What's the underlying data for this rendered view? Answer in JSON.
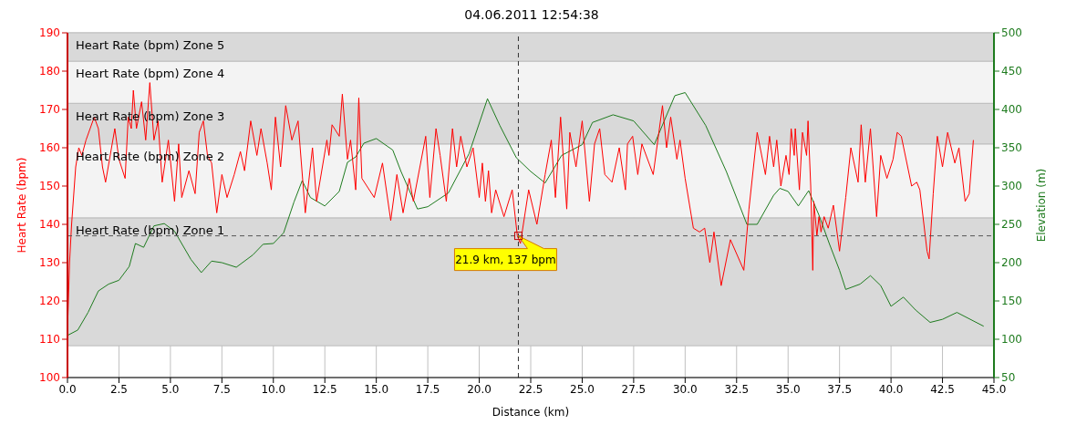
{
  "chart_data": {
    "type": "line",
    "title": "04.06.2011 12:54:38",
    "xlabel": "Distance (km)",
    "ylabel": "Heart Rate (bpm)",
    "y2label": "Elevation (m)",
    "xlim": [
      0,
      45
    ],
    "xticks": [
      {
        "value": 0,
        "label": "0.0"
      },
      2.5,
      {
        "value": 5,
        "label": "5.0"
      },
      7.5,
      {
        "value": 10,
        "label": "10.0"
      },
      12.5,
      {
        "value": 15,
        "label": "15.0"
      },
      17.5,
      {
        "value": 20,
        "label": "20.0"
      },
      22.5,
      {
        "value": 25,
        "label": "25.0"
      },
      27.5,
      {
        "value": 30,
        "label": "30.0"
      },
      32.5,
      {
        "value": 35,
        "label": "35.0"
      },
      37.5,
      {
        "value": 40,
        "label": "40.0"
      },
      42.5,
      {
        "value": 45,
        "label": "45.0"
      }
    ],
    "ylim": [
      100,
      190
    ],
    "yticks": [
      100,
      110,
      120,
      130,
      140,
      150,
      160,
      170,
      180,
      190
    ],
    "y2lim": [
      50,
      500
    ],
    "y2ticks": [
      50,
      100,
      150,
      200,
      250,
      300,
      350,
      400,
      450,
      500
    ],
    "grid": true,
    "series": [
      {
        "color": "#1e7b1e",
        "axis": "y2",
        "x": [
          0,
          0.5,
          1,
          1.5,
          2,
          2.5,
          3,
          3.3,
          3.7,
          4.2,
          4.7,
          5.2,
          6,
          6.5,
          7,
          7.5,
          8.2,
          9,
          9.5,
          10,
          10.5,
          11,
          11.4,
          11.8,
          12.5,
          13.2,
          13.6,
          14,
          14.4,
          15,
          15.8,
          16.2,
          17,
          17.5,
          18.5,
          19.5,
          20.4,
          21,
          21.8,
          22.5,
          23.2,
          24,
          25,
          25.5,
          26.5,
          27.5,
          28.5,
          29.5,
          30,
          31,
          32,
          33,
          33.5,
          34.3,
          34.6,
          35,
          35.5,
          36,
          36.5,
          37,
          37.5,
          37.8,
          38.5,
          39,
          39.5,
          40,
          40.6,
          41.2,
          41.9,
          42.5,
          43.2,
          44.5
        ],
        "values": [
          105,
          112,
          135,
          163,
          172,
          177,
          195,
          225,
          220,
          248,
          251,
          241,
          204,
          187,
          202,
          200,
          194,
          210,
          224,
          225,
          239,
          279,
          307,
          285,
          274,
          293,
          331,
          338,
          356,
          362,
          347,
          319,
          270,
          273,
          291,
          342,
          414,
          379,
          337,
          319,
          304,
          340,
          354,
          383,
          393,
          385,
          354,
          418,
          422,
          379,
          319,
          250,
          250,
          288,
          297,
          293,
          274,
          294,
          262,
          225,
          190,
          165,
          172,
          183,
          170,
          143,
          155,
          138,
          122,
          126,
          135,
          117
        ]
      },
      {
        "color": "#ff0000",
        "axis": "y",
        "x": [
          0,
          0.1,
          0.2,
          0.4,
          0.55,
          0.7,
          0.9,
          1.3,
          1.5,
          1.7,
          1.85,
          2.3,
          2.5,
          2.8,
          2.95,
          3.1,
          3.2,
          3.35,
          3.6,
          3.8,
          4,
          4.2,
          4.4,
          4.6,
          4.9,
          5.2,
          5.4,
          5.55,
          5.9,
          6.2,
          6.4,
          6.6,
          6.8,
          7,
          7.25,
          7.5,
          7.75,
          8.1,
          8.4,
          8.6,
          8.9,
          9.2,
          9.4,
          9.7,
          9.9,
          10.1,
          10.35,
          10.6,
          10.9,
          11.2,
          11.55,
          11.9,
          12.1,
          12.6,
          12.7,
          12.85,
          13.2,
          13.35,
          13.6,
          13.75,
          14,
          14.15,
          14.3,
          14.9,
          15.3,
          15.7,
          16,
          16.3,
          16.6,
          16.8,
          17.4,
          17.6,
          17.9,
          18.1,
          18.4,
          18.7,
          18.9,
          19.1,
          19.4,
          19.7,
          20,
          20.15,
          20.3,
          20.45,
          20.6,
          20.8,
          21.2,
          21.6,
          21.85,
          22,
          22.4,
          22.8,
          23.2,
          23.5,
          23.7,
          23.95,
          24.25,
          24.4,
          24.7,
          25,
          25.35,
          25.6,
          25.85,
          26.1,
          26.45,
          26.8,
          27.1,
          27.2,
          27.45,
          27.7,
          27.9,
          28.45,
          28.9,
          29.1,
          29.3,
          29.6,
          29.75,
          30,
          30.4,
          30.7,
          30.95,
          31.2,
          31.4,
          31.75,
          32.2,
          32.85,
          33.1,
          33.5,
          33.9,
          34.1,
          34.3,
          34.45,
          34.65,
          34.9,
          35.05,
          35.15,
          35.3,
          35.35,
          35.55,
          35.7,
          35.9,
          35.97,
          36.1,
          36.2,
          36.25,
          36.4,
          36.5,
          36.6,
          36.75,
          36.95,
          37.2,
          37.5,
          37.8,
          38.05,
          38.4,
          38.55,
          38.75,
          39,
          39.3,
          39.5,
          39.8,
          40.1,
          40.3,
          40.5,
          41,
          41.25,
          41.4,
          41.75,
          41.85,
          42.05,
          42.25,
          42.5,
          42.75,
          43.1,
          43.3,
          43.6,
          43.8,
          44
        ],
        "values": [
          112,
          130,
          140,
          155,
          160,
          158,
          162,
          168,
          165,
          155,
          151,
          165,
          157,
          152,
          168,
          165,
          175,
          165,
          172,
          162,
          177,
          162,
          167,
          151,
          162,
          146,
          161,
          147,
          154,
          148,
          164,
          167,
          158,
          156,
          143,
          153,
          147,
          153,
          159,
          154,
          167,
          158,
          165,
          156,
          149,
          168,
          155,
          171,
          162,
          167,
          143,
          160,
          146,
          162,
          158,
          166,
          163,
          174,
          157,
          162,
          149,
          173,
          152,
          147,
          156,
          141,
          153,
          143,
          152,
          146,
          163,
          147,
          165,
          158,
          146,
          165,
          155,
          163,
          155,
          160,
          147,
          156,
          146,
          154,
          143,
          149,
          142,
          149,
          137,
          135,
          149,
          140,
          153,
          162,
          147,
          168,
          144,
          164,
          155,
          167,
          146,
          161,
          165,
          153,
          151,
          160,
          149,
          161,
          163,
          153,
          161,
          153,
          171,
          160,
          168,
          157,
          162,
          152,
          139,
          138,
          139,
          130,
          138,
          124,
          136,
          128,
          144,
          164,
          153,
          163,
          155,
          162,
          150,
          158,
          153,
          165,
          158,
          165,
          149,
          164,
          158,
          167,
          150,
          128,
          146,
          137,
          142,
          138,
          142,
          139,
          145,
          133,
          147,
          160,
          151,
          166,
          151,
          165,
          142,
          158,
          152,
          157,
          164,
          163,
          150,
          151,
          149,
          133,
          131,
          148,
          163,
          155,
          164,
          156,
          160,
          146,
          148,
          162
        ]
      }
    ],
    "bands": [
      {
        "axis": "y",
        "from": 108.3,
        "to": 141.7,
        "label": "Heart Rate (bpm) Zone 1",
        "color": "#d9d9d9"
      },
      {
        "axis": "y",
        "from": 141.7,
        "to": 161,
        "label": "Heart Rate (bpm) Zone 2",
        "color": "#f3f3f3"
      },
      {
        "axis": "y",
        "from": 161,
        "to": 171.6,
        "label": "Heart Rate (bpm) Zone 3",
        "color": "#d9d9d9"
      },
      {
        "axis": "y",
        "from": 171.6,
        "to": 182.6,
        "label": "Heart Rate (bpm) Zone 4",
        "color": "#f3f3f3"
      },
      {
        "axis": "y",
        "from": 182.6,
        "to": 190,
        "label": "Heart Rate (bpm) Zone 5",
        "color": "#d9d9d9"
      }
    ],
    "ref_lines": [
      {
        "axis": "x",
        "value": 21.9,
        "color": "#333333",
        "line_style": "dashed"
      },
      {
        "axis": "y",
        "value": 137,
        "color": "#555555",
        "line_style": "dashed"
      }
    ],
    "annotations": [
      {
        "text": "21.9 km, 137 bpm",
        "x": 21.9,
        "y": 137
      }
    ]
  }
}
